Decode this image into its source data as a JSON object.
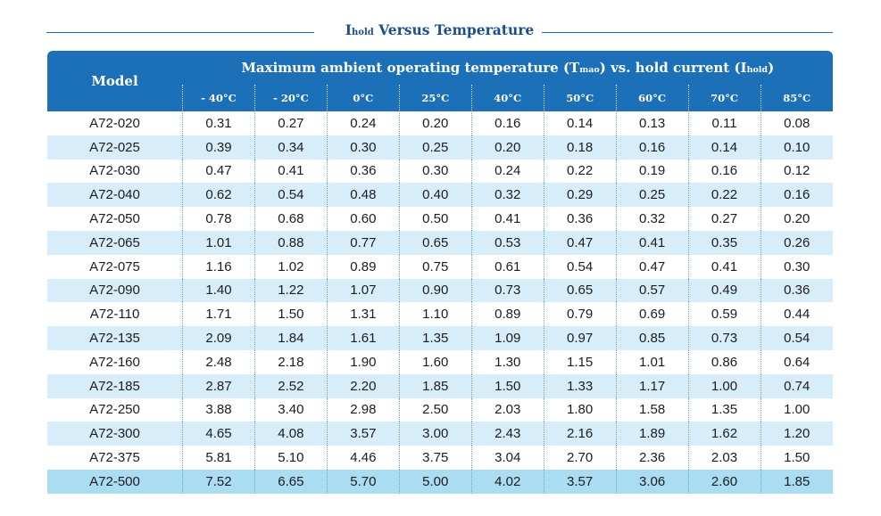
{
  "title": {
    "main": "I",
    "sub": "hold",
    "rest": " Versus Temperature"
  },
  "table": {
    "model_header": "Model",
    "group_header": {
      "part1": "Maximum ambient operating temperature (T",
      "sub1": "mao",
      "part2": ") vs. hold current (I",
      "sub2": "hold",
      "part3": ")"
    },
    "temperatures": [
      "- 40°C",
      "- 20°C",
      "0°C",
      "25°C",
      "40°C",
      "50°C",
      "60°C",
      "70°C",
      "85°C"
    ],
    "rows": [
      {
        "model": "A72-020",
        "values": [
          "0.31",
          "0.27",
          "0.24",
          "0.20",
          "0.16",
          "0.14",
          "0.13",
          "0.11",
          "0.08"
        ]
      },
      {
        "model": "A72-025",
        "values": [
          "0.39",
          "0.34",
          "0.30",
          "0.25",
          "0.20",
          "0.18",
          "0.16",
          "0.14",
          "0.10"
        ]
      },
      {
        "model": "A72-030",
        "values": [
          "0.47",
          "0.41",
          "0.36",
          "0.30",
          "0.24",
          "0.22",
          "0.19",
          "0.16",
          "0.12"
        ]
      },
      {
        "model": "A72-040",
        "values": [
          "0.62",
          "0.54",
          "0.48",
          "0.40",
          "0.32",
          "0.29",
          "0.25",
          "0.22",
          "0.16"
        ]
      },
      {
        "model": "A72-050",
        "values": [
          "0.78",
          "0.68",
          "0.60",
          "0.50",
          "0.41",
          "0.36",
          "0.32",
          "0.27",
          "0.20"
        ]
      },
      {
        "model": "A72-065",
        "values": [
          "1.01",
          "0.88",
          "0.77",
          "0.65",
          "0.53",
          "0.47",
          "0.41",
          "0.35",
          "0.26"
        ]
      },
      {
        "model": "A72-075",
        "values": [
          "1.16",
          "1.02",
          "0.89",
          "0.75",
          "0.61",
          "0.54",
          "0.47",
          "0.41",
          "0.30"
        ]
      },
      {
        "model": "A72-090",
        "values": [
          "1.40",
          "1.22",
          "1.07",
          "0.90",
          "0.73",
          "0.65",
          "0.57",
          "0.49",
          "0.36"
        ]
      },
      {
        "model": "A72-110",
        "values": [
          "1.71",
          "1.50",
          "1.31",
          "1.10",
          "0.89",
          "0.79",
          "0.69",
          "0.59",
          "0.44"
        ]
      },
      {
        "model": "A72-135",
        "values": [
          "2.09",
          "1.84",
          "1.61",
          "1.35",
          "1.09",
          "0.97",
          "0.85",
          "0.73",
          "0.54"
        ]
      },
      {
        "model": "A72-160",
        "values": [
          "2.48",
          "2.18",
          "1.90",
          "1.60",
          "1.30",
          "1.15",
          "1.01",
          "0.86",
          "0.64"
        ]
      },
      {
        "model": "A72-185",
        "values": [
          "2.87",
          "2.52",
          "2.20",
          "1.85",
          "1.50",
          "1.33",
          "1.17",
          "1.00",
          "0.74"
        ]
      },
      {
        "model": "A72-250",
        "values": [
          "3.88",
          "3.40",
          "2.98",
          "2.50",
          "2.03",
          "1.80",
          "1.58",
          "1.35",
          "1.00"
        ]
      },
      {
        "model": "A72-300",
        "values": [
          "4.65",
          "4.08",
          "3.57",
          "3.00",
          "2.43",
          "2.16",
          "1.89",
          "1.62",
          "1.20"
        ]
      },
      {
        "model": "A72-375",
        "values": [
          "5.81",
          "5.10",
          "4.46",
          "3.75",
          "3.04",
          "2.70",
          "2.36",
          "2.03",
          "1.50"
        ]
      },
      {
        "model": "A72-500",
        "values": [
          "7.52",
          "6.65",
          "5.70",
          "5.00",
          "4.02",
          "3.57",
          "3.06",
          "2.60",
          "1.85"
        ]
      }
    ]
  },
  "colors": {
    "header_blue": "#1c70b8",
    "title_blue": "#1a4f8b",
    "alt_row": "#d7eefa",
    "last_row": "#aadcf2"
  }
}
